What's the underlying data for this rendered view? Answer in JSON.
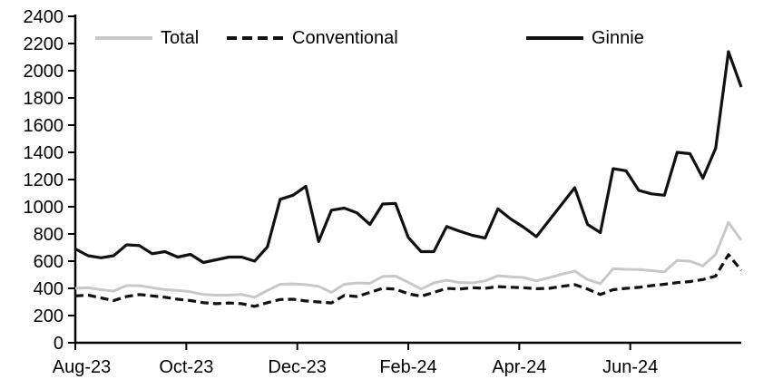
{
  "chart_data": {
    "type": "line",
    "title": "",
    "xlabel": "",
    "ylabel": "",
    "x_axis": {
      "tick_labels": [
        "Aug-23",
        "Oct-23",
        "Dec-23",
        "Feb-24",
        "Apr-24",
        "Jun-24"
      ],
      "tick_month_offsets": [
        0,
        2,
        4,
        6,
        8,
        10
      ],
      "months_span": 12,
      "frequency": "weekly"
    },
    "y_axis": {
      "min": 0,
      "max": 2400,
      "step": 200,
      "tick_labels": [
        "0",
        "200",
        "400",
        "600",
        "800",
        "1000",
        "1200",
        "1400",
        "1600",
        "1800",
        "2000",
        "2200",
        "2400"
      ]
    },
    "grid": "off",
    "legend_position": "top",
    "series": [
      {
        "name": "Total",
        "color": "#c8c8c8",
        "style": "solid",
        "values": [
          400,
          405,
          390,
          380,
          420,
          420,
          405,
          390,
          385,
          375,
          355,
          350,
          350,
          355,
          335,
          385,
          430,
          433,
          427,
          415,
          370,
          430,
          440,
          437,
          487,
          490,
          445,
          395,
          440,
          460,
          443,
          440,
          455,
          493,
          485,
          480,
          455,
          478,
          505,
          527,
          465,
          435,
          545,
          540,
          538,
          530,
          522,
          605,
          600,
          565,
          650,
          885,
          755
        ]
      },
      {
        "name": "Conventional",
        "color": "#111111",
        "style": "dashed",
        "values": [
          345,
          350,
          330,
          310,
          340,
          355,
          345,
          335,
          320,
          310,
          295,
          287,
          293,
          287,
          267,
          295,
          318,
          320,
          307,
          300,
          293,
          347,
          340,
          370,
          400,
          395,
          360,
          342,
          370,
          400,
          395,
          405,
          400,
          413,
          408,
          405,
          397,
          400,
          415,
          427,
          395,
          355,
          390,
          400,
          407,
          420,
          430,
          442,
          450,
          465,
          490,
          648,
          533
        ]
      },
      {
        "name": "Ginnie",
        "color": "#111111",
        "style": "solid",
        "values": [
          690,
          640,
          625,
          640,
          720,
          715,
          655,
          670,
          630,
          650,
          590,
          610,
          630,
          630,
          600,
          705,
          1055,
          1085,
          1150,
          745,
          975,
          990,
          955,
          870,
          1020,
          1025,
          775,
          670,
          670,
          855,
          820,
          790,
          770,
          985,
          910,
          850,
          780,
          900,
          1020,
          1140,
          870,
          810,
          1280,
          1265,
          1120,
          1095,
          1085,
          1400,
          1390,
          1210,
          1430,
          2140,
          1880
        ]
      }
    ]
  },
  "legend": {
    "items": [
      {
        "label": "Total"
      },
      {
        "label": "Conventional"
      },
      {
        "label": "Ginnie"
      }
    ]
  }
}
